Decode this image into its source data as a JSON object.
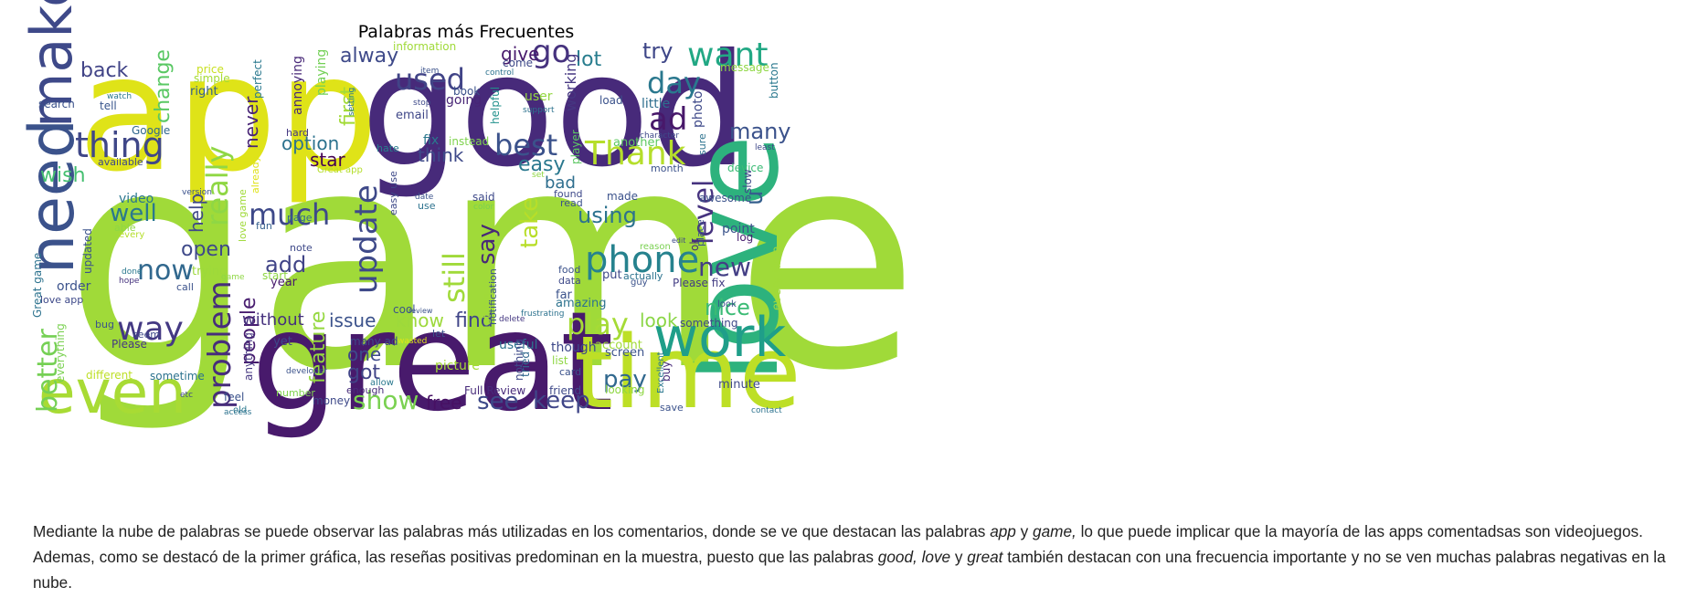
{
  "chart_data": {
    "type": "wordcloud",
    "title": "Palabras más Frecuentes",
    "words": [
      {
        "text": "game",
        "color": "#a0da39"
      },
      {
        "text": "app",
        "color": "#dfe318"
      },
      {
        "text": "good",
        "color": "#472a7a"
      },
      {
        "text": "great",
        "color": "#481a6c"
      },
      {
        "text": "love",
        "color": "#2db27d"
      },
      {
        "text": "time",
        "color": "#bddf26"
      },
      {
        "text": "make",
        "color": "#3e4989"
      },
      {
        "text": "need",
        "color": "#3b528b"
      },
      {
        "text": "even",
        "color": "#a8db34"
      },
      {
        "text": "work",
        "color": "#1f9e89"
      },
      {
        "text": "thing",
        "color": "#3f4788"
      },
      {
        "text": "want",
        "color": "#22a884"
      },
      {
        "text": "used",
        "color": "#414487"
      },
      {
        "text": "go",
        "color": "#46327e"
      },
      {
        "text": "day",
        "color": "#2a788e"
      },
      {
        "text": "ad",
        "color": "#48186a"
      },
      {
        "text": "Thank",
        "color": "#b5de2b"
      },
      {
        "text": "best",
        "color": "#3b528b"
      },
      {
        "text": "phone",
        "color": "#26828e"
      },
      {
        "text": "update",
        "color": "#3e4989"
      },
      {
        "text": "problem",
        "color": "#472d7b"
      },
      {
        "text": "much",
        "color": "#3e4989"
      },
      {
        "text": "still",
        "color": "#a0da39"
      },
      {
        "text": "way",
        "color": "#443983"
      },
      {
        "text": "now",
        "color": "#31688e"
      },
      {
        "text": "better",
        "color": "#75d054"
      },
      {
        "text": "play",
        "color": "#a5db36"
      },
      {
        "text": "new",
        "color": "#433e85"
      },
      {
        "text": "level",
        "color": "#46337f"
      },
      {
        "text": "really",
        "color": "#8fd744"
      },
      {
        "text": "say",
        "color": "#482878"
      },
      {
        "text": "many",
        "color": "#3b528b"
      },
      {
        "text": "nice",
        "color": "#3bbb75"
      },
      {
        "text": "pay",
        "color": "#31688e"
      },
      {
        "text": "see",
        "color": "#3e4989"
      },
      {
        "text": "show",
        "color": "#7ad151"
      },
      {
        "text": "keep",
        "color": "#404688"
      },
      {
        "text": "free",
        "color": "#471164"
      },
      {
        "text": "using",
        "color": "#2c728e"
      },
      {
        "text": "easy",
        "color": "#2a788e"
      },
      {
        "text": "u",
        "color": "#355f8d"
      },
      {
        "text": "take",
        "color": "#b8de29"
      },
      {
        "text": "feature",
        "color": "#95d840"
      },
      {
        "text": "issue",
        "color": "#3b528b"
      },
      {
        "text": "find",
        "color": "#404588"
      },
      {
        "text": "know",
        "color": "#9dd93b"
      },
      {
        "text": "look",
        "color": "#8bd646"
      },
      {
        "text": "got",
        "color": "#414487"
      },
      {
        "text": "one",
        "color": "#3e4a89"
      },
      {
        "text": "people",
        "color": "#481d6f"
      },
      {
        "text": "without",
        "color": "#46327e"
      },
      {
        "text": "add",
        "color": "#414487"
      },
      {
        "text": "open",
        "color": "#3e4989"
      },
      {
        "text": "help",
        "color": "#3f4889"
      },
      {
        "text": "well",
        "color": "#2a788e"
      },
      {
        "text": "wish",
        "color": "#44bf70"
      },
      {
        "text": "back",
        "color": "#414487"
      },
      {
        "text": "change",
        "color": "#5ac864"
      },
      {
        "text": "option",
        "color": "#2c728e"
      },
      {
        "text": "star",
        "color": "#440154"
      },
      {
        "text": "think",
        "color": "#3e4989"
      },
      {
        "text": "bad",
        "color": "#2e6e8e"
      },
      {
        "text": "give",
        "color": "#481a6c"
      },
      {
        "text": "lot",
        "color": "#287d8e"
      },
      {
        "text": "try",
        "color": "#3f4788"
      },
      {
        "text": "alway",
        "color": "#3e4989"
      },
      {
        "text": "first",
        "color": "#a2da37"
      },
      {
        "text": "never",
        "color": "#482475"
      },
      {
        "text": "order",
        "color": "#3b528b"
      },
      {
        "text": "right",
        "color": "#355e8d"
      },
      {
        "text": "video",
        "color": "#2a768e"
      },
      {
        "text": "Please fix",
        "color": "#433d84"
      },
      {
        "text": "point",
        "color": "#3a538b"
      },
      {
        "text": "log",
        "color": "#481f70"
      },
      {
        "text": "ok",
        "color": "#472c7a"
      },
      {
        "text": "awesome",
        "color": "#3b528b"
      },
      {
        "text": "device",
        "color": "#3bbb75"
      },
      {
        "text": "slow",
        "color": "#3f4889"
      },
      {
        "text": "photo",
        "color": "#3e4989"
      },
      {
        "text": "little",
        "color": "#2e6e8e"
      },
      {
        "text": "player",
        "color": "#5cc863"
      },
      {
        "text": "working",
        "color": "#453781"
      },
      {
        "text": "load",
        "color": "#3b528b"
      },
      {
        "text": "another",
        "color": "#5ec962"
      },
      {
        "text": "fix",
        "color": "#2a788e"
      },
      {
        "text": "instead",
        "color": "#7fd34e"
      },
      {
        "text": "helpful",
        "color": "#21918c"
      },
      {
        "text": "going",
        "color": "#482576"
      },
      {
        "text": "book",
        "color": "#3b528b"
      },
      {
        "text": "user",
        "color": "#93d741"
      },
      {
        "text": "support",
        "color": "#2c728e"
      },
      {
        "text": "email",
        "color": "#3f4788"
      },
      {
        "text": "hate",
        "color": "#287d8e"
      },
      {
        "text": "hard",
        "color": "#453882"
      },
      {
        "text": "Great app",
        "color": "#b5de2b"
      },
      {
        "text": "annoying",
        "color": "#482878"
      },
      {
        "text": "playing",
        "color": "#73d056"
      },
      {
        "text": "perfect",
        "color": "#2a788e"
      },
      {
        "text": "simple",
        "color": "#a5db36"
      },
      {
        "text": "price",
        "color": "#c8e020"
      },
      {
        "text": "search",
        "color": "#3b528b"
      },
      {
        "text": "tell",
        "color": "#39568c"
      },
      {
        "text": "watch",
        "color": "#2a788e"
      },
      {
        "text": "Google",
        "color": "#31688e"
      },
      {
        "text": "available",
        "color": "#3e4989"
      },
      {
        "text": "able",
        "color": "#8fd744"
      },
      {
        "text": "every",
        "color": "#b5de2b"
      },
      {
        "text": "updated",
        "color": "#3b528b"
      },
      {
        "text": "Great game",
        "color": "#2c728e"
      },
      {
        "text": "love app",
        "color": "#3e4989"
      },
      {
        "text": "done",
        "color": "#2a788e"
      },
      {
        "text": "hope",
        "color": "#46327e"
      },
      {
        "text": "trying",
        "color": "#9dd93b"
      },
      {
        "text": "call",
        "color": "#3b528b"
      },
      {
        "text": "start",
        "color": "#8fd744"
      },
      {
        "text": "year",
        "color": "#481a6c"
      },
      {
        "text": "note",
        "color": "#3e4989"
      },
      {
        "text": "fun",
        "color": "#355f8d"
      },
      {
        "text": "page",
        "color": "#31688e"
      },
      {
        "text": "love game",
        "color": "#a0da39"
      },
      {
        "text": "already",
        "color": "#dfe318"
      },
      {
        "text": "bug",
        "color": "#3b528b"
      },
      {
        "text": "seem",
        "color": "#3e4989"
      },
      {
        "text": "Please",
        "color": "#453882"
      },
      {
        "text": "everything",
        "color": "#7ad151"
      },
      {
        "text": "different",
        "color": "#bddf26"
      },
      {
        "text": "sometime",
        "color": "#2c728e"
      },
      {
        "text": "anything",
        "color": "#453781"
      },
      {
        "text": "feel",
        "color": "#3b528b"
      },
      {
        "text": "old",
        "color": "#2a788e"
      },
      {
        "text": "number",
        "color": "#7fd34e"
      },
      {
        "text": "yet",
        "color": "#3e4989"
      },
      {
        "text": "developer",
        "color": "#3b528b"
      },
      {
        "text": "enough",
        "color": "#472c7a"
      },
      {
        "text": "money",
        "color": "#3e4989"
      },
      {
        "text": "allow",
        "color": "#2a788e"
      },
      {
        "text": "many ad",
        "color": "#3e4989"
      },
      {
        "text": "cool",
        "color": "#3b528b"
      },
      {
        "text": "picture",
        "color": "#a5db36"
      },
      {
        "text": "useful",
        "color": "#2c728e"
      },
      {
        "text": "Full Review",
        "color": "#472a7a"
      },
      {
        "text": "nothing",
        "color": "#3e4989"
      },
      {
        "text": "tried",
        "color": "#31688e"
      },
      {
        "text": "let",
        "color": "#3b528b"
      },
      {
        "text": "delete",
        "color": "#453882"
      },
      {
        "text": "frustrating",
        "color": "#2c728e"
      },
      {
        "text": "though",
        "color": "#3e4989"
      },
      {
        "text": "list",
        "color": "#8fd744"
      },
      {
        "text": "card",
        "color": "#3b528b"
      },
      {
        "text": "friend",
        "color": "#3e4989"
      },
      {
        "text": "account",
        "color": "#a0da39"
      },
      {
        "text": "screen",
        "color": "#3b528b"
      },
      {
        "text": "looking",
        "color": "#8fd744"
      },
      {
        "text": "something",
        "color": "#3e4989"
      },
      {
        "text": "buy",
        "color": "#472a7a"
      },
      {
        "text": "Excellent",
        "color": "#2a788e"
      },
      {
        "text": "save",
        "color": "#3b528b"
      },
      {
        "text": "minute",
        "color": "#3e4989"
      },
      {
        "text": "contact",
        "color": "#2c728e"
      },
      {
        "text": "every time",
        "color": "#a0da39"
      },
      {
        "text": "amazing",
        "color": "#2c728e"
      },
      {
        "text": "far",
        "color": "#3b528b"
      },
      {
        "text": "data",
        "color": "#3e4989"
      },
      {
        "text": "food",
        "color": "#3b528b"
      },
      {
        "text": "getting",
        "color": "#a0da39"
      },
      {
        "text": "notification",
        "color": "#3b528b"
      },
      {
        "text": "put",
        "color": "#3e4989"
      },
      {
        "text": "actually",
        "color": "#2c728e"
      },
      {
        "text": "guy",
        "color": "#3b528b"
      },
      {
        "text": "reason",
        "color": "#7ad151"
      },
      {
        "text": "read",
        "color": "#3b528b"
      },
      {
        "text": "found",
        "color": "#3e4989"
      },
      {
        "text": "made",
        "color": "#3b528b"
      },
      {
        "text": "said",
        "color": "#3e4989"
      },
      {
        "text": "color",
        "color": "#7ad151"
      },
      {
        "text": "date",
        "color": "#3b528b"
      },
      {
        "text": "set",
        "color": "#8fd744"
      },
      {
        "text": "use",
        "color": "#2c728e"
      },
      {
        "text": "character",
        "color": "#3e4989"
      },
      {
        "text": "month",
        "color": "#3b528b"
      },
      {
        "text": "sure",
        "color": "#2c728e"
      },
      {
        "text": "edit",
        "color": "#3e4989"
      },
      {
        "text": "place",
        "color": "#3b528b"
      },
      {
        "text": "least",
        "color": "#3e4989"
      },
      {
        "text": "button",
        "color": "#2a788e"
      },
      {
        "text": "message",
        "color": "#8fd744"
      },
      {
        "text": "control",
        "color": "#2c728e"
      },
      {
        "text": "come",
        "color": "#3e4989"
      },
      {
        "text": "information",
        "color": "#a0da39"
      },
      {
        "text": "item",
        "color": "#3b528b"
      },
      {
        "text": "stop",
        "color": "#3e4989"
      },
      {
        "text": "setting",
        "color": "#2c728e"
      },
      {
        "text": "version",
        "color": "#3b528b"
      },
      {
        "text": "etc",
        "color": "#3e4989"
      },
      {
        "text": "access",
        "color": "#2c728e"
      },
      {
        "text": "review",
        "color": "#3b528b"
      },
      {
        "text": "wasted",
        "color": "#dfe318"
      },
      {
        "text": "easy use",
        "color": "#3e4989"
      },
      {
        "text": "game",
        "color": "#8fd744"
      },
      {
        "text": "look",
        "color": "#3b528b"
      }
    ]
  },
  "description": {
    "part1": "Mediante la nube de palabras se puede observar las palabras más utilizadas en los comentarios, donde se ve que destacan las palabras ",
    "em1": "app",
    "part2": " y ",
    "em2": "game,",
    "part3": " lo que puede implicar que la mayoría de las apps comentadsas son videojuegos. Ademas, como se destacó de la primer gráfica, las reseñas positivas predominan en la muestra, puesto que las palabras ",
    "em3": "good, love",
    "part4": " y ",
    "em4": "great",
    "part5": " también destacan con una frecuencia importante y no se ven muchas palabras negativas en la nube."
  }
}
